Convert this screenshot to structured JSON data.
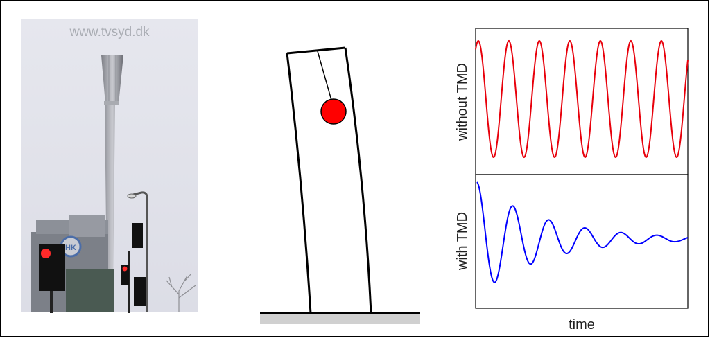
{
  "photo": {
    "watermark": "www.tvsyd.dk",
    "sign_text": "HK"
  },
  "diagram": {
    "mass_color": "#ff0000",
    "structure_color": "#000000",
    "ground_color": "#d0d0d0"
  },
  "plots": {
    "top_label": "without TMD",
    "bottom_label": "with TMD",
    "x_label": "time",
    "top_color": "#e8000b",
    "bottom_color": "#0000ff"
  }
}
